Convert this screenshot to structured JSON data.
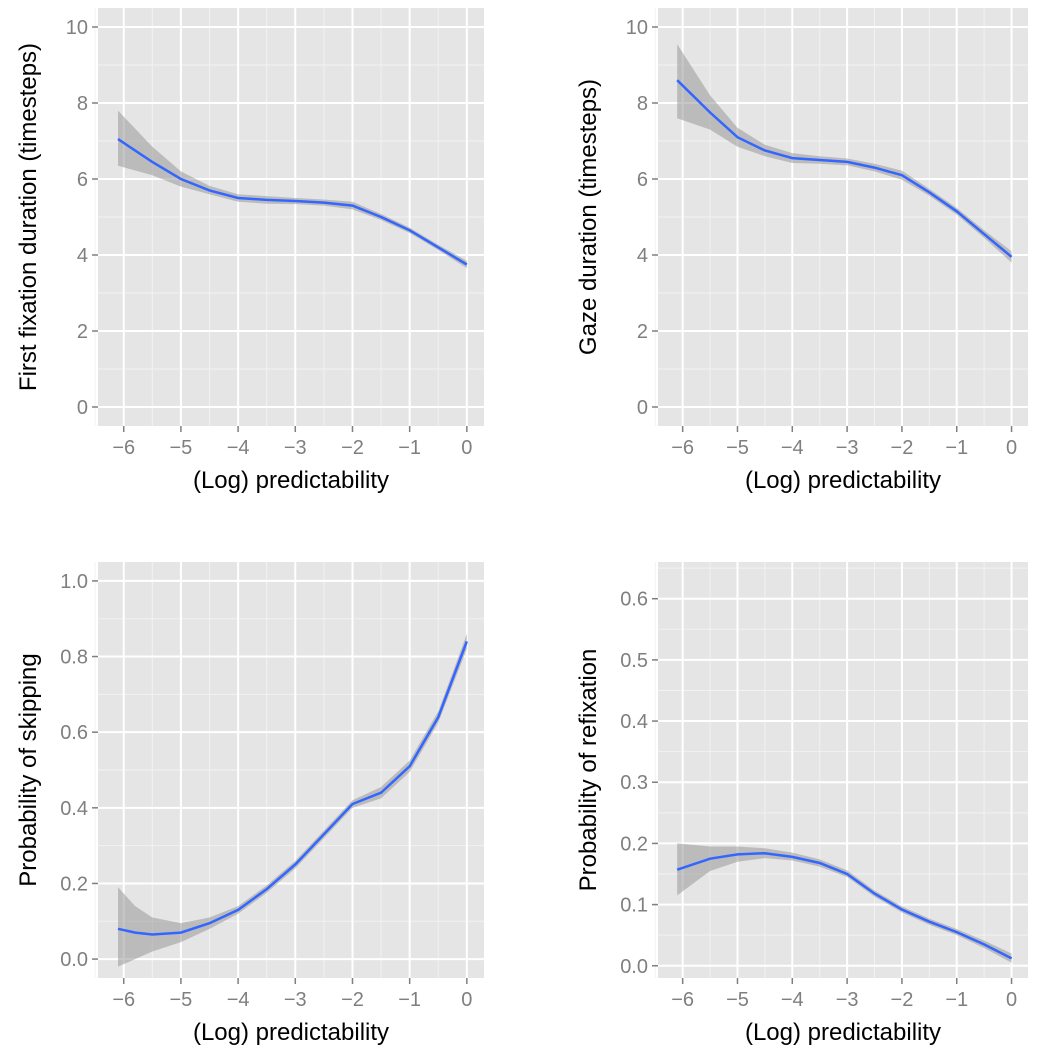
{
  "figure": {
    "panel_background": "#e5e5e5",
    "grid_color": "#ffffff",
    "line_color": "#3366ff",
    "ribbon_color": "#999999",
    "tick_label_color": "#7f7f7f"
  },
  "chart_data": [
    {
      "type": "line",
      "xlabel": "(Log) predictability",
      "ylabel": "First fixation duration (timesteps)",
      "xlim": [
        -6.45,
        0.3
      ],
      "ylim": [
        -0.5,
        10.5
      ],
      "xticks": [
        -6,
        -5,
        -4,
        -3,
        -2,
        -1,
        0
      ],
      "xtick_labels": [
        "−6",
        "−5",
        "−4",
        "−3",
        "−2",
        "−1",
        "0"
      ],
      "yticks": [
        0,
        2,
        4,
        6,
        8,
        10
      ],
      "ytick_labels": [
        "0",
        "2",
        "4",
        "6",
        "8",
        "10"
      ],
      "grid": true,
      "series": [
        {
          "x": [
            -6.1,
            -5.5,
            -5.0,
            -4.5,
            -4.0,
            -3.5,
            -3.0,
            -2.5,
            -2.0,
            -1.5,
            -1.0,
            -0.5,
            0.0
          ],
          "y": [
            7.05,
            6.45,
            6.0,
            5.7,
            5.5,
            5.45,
            5.42,
            5.38,
            5.3,
            5.0,
            4.65,
            4.2,
            3.75
          ],
          "lower": [
            6.35,
            6.1,
            5.8,
            5.6,
            5.4,
            5.35,
            5.34,
            5.3,
            5.2,
            4.92,
            4.58,
            4.13,
            3.65
          ],
          "upper": [
            7.8,
            6.85,
            6.2,
            5.82,
            5.6,
            5.55,
            5.5,
            5.46,
            5.4,
            5.08,
            4.72,
            4.27,
            3.85
          ]
        }
      ]
    },
    {
      "type": "line",
      "xlabel": "(Log) predictability",
      "ylabel": "Gaze duration (timesteps)",
      "xlim": [
        -6.45,
        0.3
      ],
      "ylim": [
        -0.5,
        10.5
      ],
      "xticks": [
        -6,
        -5,
        -4,
        -3,
        -2,
        -1,
        0
      ],
      "xtick_labels": [
        "−6",
        "−5",
        "−4",
        "−3",
        "−2",
        "−1",
        "0"
      ],
      "yticks": [
        0,
        2,
        4,
        6,
        8,
        10
      ],
      "ytick_labels": [
        "0",
        "2",
        "4",
        "6",
        "8",
        "10"
      ],
      "grid": true,
      "series": [
        {
          "x": [
            -6.1,
            -5.5,
            -5.0,
            -4.5,
            -4.0,
            -3.5,
            -3.0,
            -2.5,
            -2.0,
            -1.5,
            -1.0,
            -0.5,
            0.0
          ],
          "y": [
            8.6,
            7.75,
            7.1,
            6.75,
            6.55,
            6.5,
            6.45,
            6.3,
            6.1,
            5.65,
            5.15,
            4.55,
            3.95
          ],
          "lower": [
            7.6,
            7.3,
            6.85,
            6.6,
            6.42,
            6.4,
            6.36,
            6.2,
            5.98,
            5.56,
            5.06,
            4.45,
            3.8
          ],
          "upper": [
            9.55,
            8.2,
            7.35,
            6.9,
            6.68,
            6.6,
            6.54,
            6.4,
            6.22,
            5.74,
            5.24,
            4.65,
            4.1
          ]
        }
      ]
    },
    {
      "type": "line",
      "xlabel": "(Log) predictability",
      "ylabel": "Probability of skipping",
      "xlim": [
        -6.45,
        0.3
      ],
      "ylim": [
        -0.05,
        1.05
      ],
      "xticks": [
        -6,
        -5,
        -4,
        -3,
        -2,
        -1,
        0
      ],
      "xtick_labels": [
        "−6",
        "−5",
        "−4",
        "−3",
        "−2",
        "−1",
        "0"
      ],
      "yticks": [
        0,
        0.2,
        0.4,
        0.6,
        0.8,
        1.0
      ],
      "ytick_labels": [
        "0.0",
        "0.2",
        "0.4",
        "0.6",
        "0.8",
        "1.0"
      ],
      "grid": true,
      "series": [
        {
          "x": [
            -6.1,
            -5.8,
            -5.5,
            -5.0,
            -4.5,
            -4.0,
            -3.5,
            -3.0,
            -2.5,
            -2.0,
            -1.5,
            -1.0,
            -0.5,
            0.0
          ],
          "y": [
            0.08,
            0.07,
            0.065,
            0.07,
            0.095,
            0.13,
            0.185,
            0.25,
            0.33,
            0.41,
            0.44,
            0.51,
            0.64,
            0.84
          ],
          "lower": [
            -0.02,
            0.0,
            0.02,
            0.045,
            0.08,
            0.12,
            0.175,
            0.24,
            0.32,
            0.4,
            0.425,
            0.495,
            0.625,
            0.82
          ],
          "upper": [
            0.19,
            0.14,
            0.11,
            0.095,
            0.11,
            0.14,
            0.195,
            0.26,
            0.34,
            0.42,
            0.455,
            0.525,
            0.655,
            0.86
          ]
        }
      ]
    },
    {
      "type": "line",
      "xlabel": "(Log) predictability",
      "ylabel": "Probability of refixation",
      "xlim": [
        -6.45,
        0.3
      ],
      "ylim": [
        -0.02,
        0.66
      ],
      "xticks": [
        -6,
        -5,
        -4,
        -3,
        -2,
        -1,
        0
      ],
      "xtick_labels": [
        "−6",
        "−5",
        "−4",
        "−3",
        "−2",
        "−1",
        "0"
      ],
      "yticks": [
        0,
        0.1,
        0.2,
        0.3,
        0.4,
        0.5,
        0.6
      ],
      "ytick_labels": [
        "0.0",
        "0.1",
        "0.2",
        "0.3",
        "0.4",
        "0.5",
        "0.6"
      ],
      "grid": true,
      "series": [
        {
          "x": [
            -6.1,
            -5.5,
            -5.0,
            -4.5,
            -4.0,
            -3.5,
            -3.0,
            -2.5,
            -2.0,
            -1.5,
            -1.0,
            -0.5,
            0.0
          ],
          "y": [
            0.157,
            0.175,
            0.182,
            0.184,
            0.178,
            0.168,
            0.15,
            0.118,
            0.092,
            0.072,
            0.055,
            0.035,
            0.012
          ],
          "lower": [
            0.115,
            0.155,
            0.17,
            0.176,
            0.172,
            0.162,
            0.145,
            0.113,
            0.087,
            0.067,
            0.05,
            0.029,
            0.005
          ],
          "upper": [
            0.2,
            0.195,
            0.195,
            0.192,
            0.185,
            0.174,
            0.156,
            0.123,
            0.097,
            0.077,
            0.06,
            0.041,
            0.02
          ]
        }
      ]
    }
  ]
}
